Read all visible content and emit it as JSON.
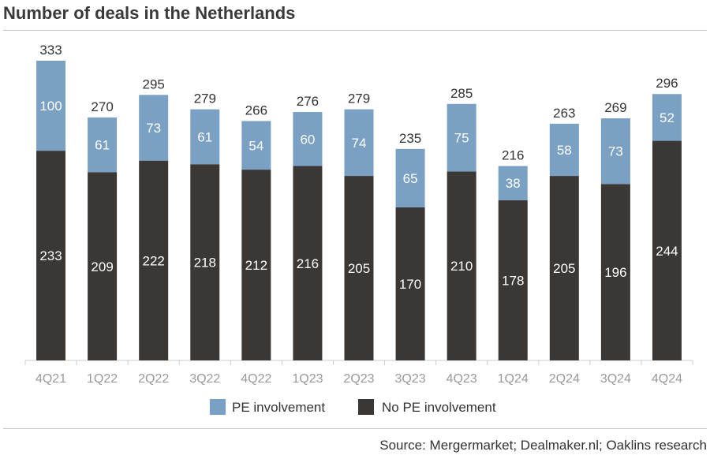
{
  "title": "Number of deals in the Netherlands",
  "source": "Source: Mergermarket; Dealmaker.nl; Oaklins research",
  "colors": {
    "pe": "#7aa0c4",
    "no_pe": "#3b3734"
  },
  "chart_data": {
    "type": "bar",
    "stacked": true,
    "title": "Number of deals in the Netherlands",
    "categories": [
      "4Q21",
      "1Q22",
      "2Q22",
      "3Q22",
      "4Q22",
      "1Q23",
      "2Q23",
      "3Q23",
      "4Q23",
      "1Q24",
      "2Q24",
      "3Q24",
      "4Q24"
    ],
    "series": [
      {
        "name": "No PE involvement",
        "values": [
          233,
          209,
          222,
          218,
          212,
          216,
          205,
          170,
          210,
          178,
          205,
          196,
          244
        ]
      },
      {
        "name": "PE involvement",
        "values": [
          100,
          61,
          73,
          61,
          54,
          60,
          74,
          65,
          75,
          38,
          58,
          73,
          52
        ]
      }
    ],
    "totals": [
      333,
      270,
      295,
      279,
      266,
      276,
      279,
      235,
      285,
      216,
      263,
      269,
      296
    ],
    "legend": [
      "PE involvement",
      "No PE involvement"
    ],
    "legend_position": "bottom",
    "grid": false,
    "ylim": [
      0,
      340
    ]
  }
}
